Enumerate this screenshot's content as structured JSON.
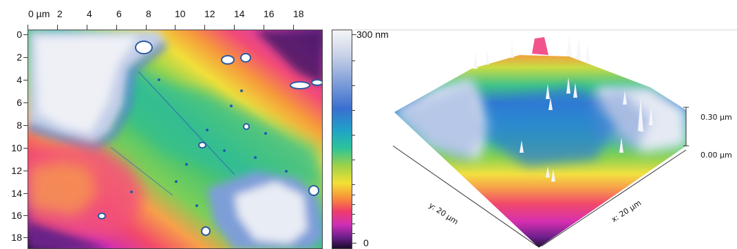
{
  "left_map": {
    "x_ticks": [
      "0 µm",
      "2",
      "4",
      "6",
      "8",
      "10",
      "12",
      "14",
      "16",
      "18"
    ],
    "y_ticks": [
      "0",
      "2",
      "4",
      "6",
      "8",
      "10",
      "12",
      "14",
      "16",
      "18"
    ]
  },
  "color_scale": {
    "max_label": "300 nm",
    "min_label": "0"
  },
  "view_3d": {
    "y_axis_label": "y: 20 µm",
    "x_axis_label": "x: 20 µm",
    "z_top_label": "0.30 µm",
    "z_bottom_label": "0.00 µm"
  }
}
